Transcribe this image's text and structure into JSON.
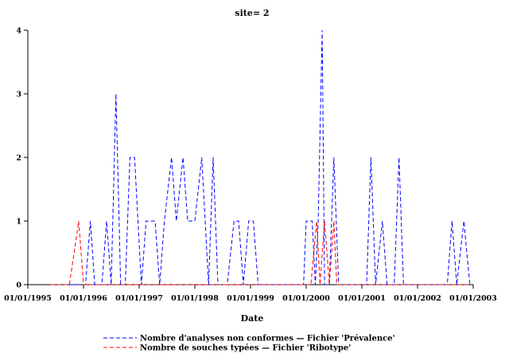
{
  "chart_data": {
    "type": "line",
    "title": "site= 2",
    "xlabel": "Date",
    "ylabel": "",
    "xlim": [
      "1995-01-01",
      "2003-01-01"
    ],
    "ylim": [
      0,
      4
    ],
    "x_ticks": [
      "01/01/1995",
      "01/01/1996",
      "01/01/1997",
      "01/01/1998",
      "01/01/1999",
      "01/01/2000",
      "01/01/2001",
      "01/01/2002",
      "01/01/2003"
    ],
    "y_ticks": [
      "0",
      "1",
      "2",
      "3",
      "4"
    ],
    "grid": false,
    "legend_position": "bottom",
    "series": [
      {
        "name": "Nombre d'analyses non conformes — Fichier 'Prévalence'",
        "color": "#0000ff",
        "dash": "dashed",
        "points": [
          [
            "1995-06-01",
            0
          ],
          [
            "1995-08-01",
            0
          ],
          [
            "1995-10-01",
            0
          ],
          [
            "1995-12-01",
            0
          ],
          [
            "1996-01-15",
            0
          ],
          [
            "1996-02-15",
            1
          ],
          [
            "1996-03-15",
            0
          ],
          [
            "1996-05-01",
            0
          ],
          [
            "1996-06-01",
            1
          ],
          [
            "1996-07-01",
            0
          ],
          [
            "1996-08-01",
            3
          ],
          [
            "1996-09-01",
            0
          ],
          [
            "1996-10-01",
            0
          ],
          [
            "1996-11-01",
            2
          ],
          [
            "1996-12-01",
            2
          ],
          [
            "1997-01-15",
            0
          ],
          [
            "1997-02-15",
            1
          ],
          [
            "1997-03-15",
            1
          ],
          [
            "1997-04-15",
            1
          ],
          [
            "1997-05-15",
            0
          ],
          [
            "1997-06-15",
            1
          ],
          [
            "1997-08-01",
            2
          ],
          [
            "1997-09-01",
            1
          ],
          [
            "1997-10-15",
            2
          ],
          [
            "1997-11-15",
            1
          ],
          [
            "1998-01-01",
            1
          ],
          [
            "1998-02-15",
            2
          ],
          [
            "1998-04-01",
            0
          ],
          [
            "1998-05-01",
            2
          ],
          [
            "1998-06-01",
            0
          ],
          [
            "1998-08-01",
            0
          ],
          [
            "1998-09-15",
            1
          ],
          [
            "1998-10-15",
            1
          ],
          [
            "1998-11-15",
            0
          ],
          [
            "1998-12-20",
            1
          ],
          [
            "1999-01-20",
            1
          ],
          [
            "1999-02-20",
            0
          ],
          [
            "1999-05-01",
            0
          ],
          [
            "1999-08-01",
            0
          ],
          [
            "1999-11-01",
            0
          ],
          [
            "1999-12-15",
            0
          ],
          [
            "2000-01-01",
            1
          ],
          [
            "2000-02-10",
            1
          ],
          [
            "2000-03-01",
            0
          ],
          [
            "2000-03-20",
            1
          ],
          [
            "2000-04-15",
            4
          ],
          [
            "2000-05-01",
            0
          ],
          [
            "2000-06-01",
            0
          ],
          [
            "2000-07-01",
            2
          ],
          [
            "2000-08-01",
            0
          ],
          [
            "2000-10-01",
            0
          ],
          [
            "2000-12-15",
            0
          ],
          [
            "2001-02-01",
            0
          ],
          [
            "2001-03-01",
            2
          ],
          [
            "2001-04-01",
            0
          ],
          [
            "2001-05-15",
            1
          ],
          [
            "2001-06-15",
            0
          ],
          [
            "2001-08-01",
            0
          ],
          [
            "2001-09-01",
            2
          ],
          [
            "2001-10-01",
            0
          ],
          [
            "2001-12-01",
            0
          ],
          [
            "2002-03-01",
            0
          ],
          [
            "2002-06-01",
            0
          ],
          [
            "2002-07-15",
            0
          ],
          [
            "2002-08-15",
            1
          ],
          [
            "2002-09-15",
            0
          ],
          [
            "2002-11-01",
            1
          ],
          [
            "2002-12-10",
            0
          ]
        ]
      },
      {
        "name": "Nombre de souches typées — Fichier 'Ribotype'",
        "color": "#ff0000",
        "dash": "dashed",
        "points": [
          [
            "1995-06-01",
            0
          ],
          [
            "1995-08-01",
            0
          ],
          [
            "1995-10-01",
            0
          ],
          [
            "1995-12-01",
            1
          ],
          [
            "1996-01-01",
            0
          ],
          [
            "1996-03-01",
            0
          ],
          [
            "1996-06-01",
            0
          ],
          [
            "1996-09-01",
            0
          ],
          [
            "1996-12-01",
            0
          ],
          [
            "1997-03-01",
            0
          ],
          [
            "1997-06-01",
            0
          ],
          [
            "1997-09-01",
            0
          ],
          [
            "1997-12-01",
            0
          ],
          [
            "1998-03-01",
            0
          ],
          [
            "1998-06-01",
            0
          ],
          [
            "1998-09-01",
            0
          ],
          [
            "1998-12-01",
            0
          ],
          [
            "1999-03-01",
            0
          ],
          [
            "1999-06-01",
            0
          ],
          [
            "1999-09-01",
            0
          ],
          [
            "1999-12-01",
            0
          ],
          [
            "2000-02-01",
            0
          ],
          [
            "2000-03-10",
            1
          ],
          [
            "2000-04-01",
            0
          ],
          [
            "2000-05-01",
            1
          ],
          [
            "2000-06-01",
            0
          ],
          [
            "2000-07-01",
            1
          ],
          [
            "2000-07-20",
            0
          ],
          [
            "2000-10-01",
            0
          ],
          [
            "2001-01-01",
            0
          ],
          [
            "2001-04-01",
            0
          ],
          [
            "2001-07-01",
            0
          ],
          [
            "2001-10-01",
            0
          ],
          [
            "2002-01-01",
            0
          ],
          [
            "2002-04-01",
            0
          ],
          [
            "2002-07-01",
            0
          ],
          [
            "2002-10-01",
            0
          ],
          [
            "2002-12-10",
            0
          ]
        ]
      }
    ]
  }
}
